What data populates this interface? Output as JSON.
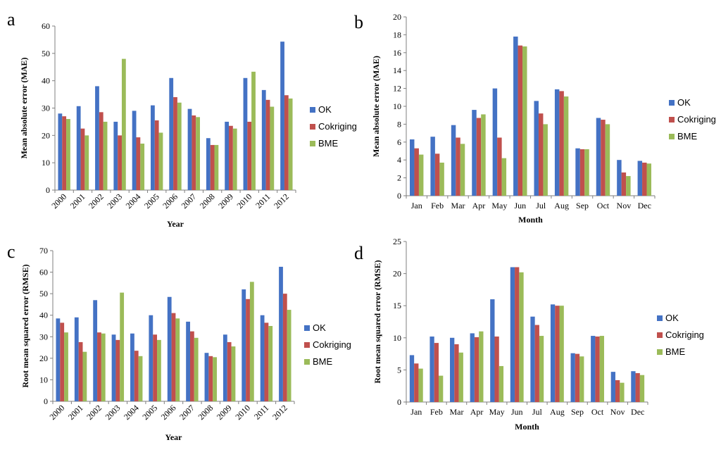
{
  "colors": {
    "OK": "#4472C4",
    "Cokriging": "#C0504D",
    "BME": "#9BBB59"
  },
  "chart_data": [
    {
      "id": "a",
      "letter": "a",
      "type": "bar",
      "xlabel": "Year",
      "ylabel": "Mean absolute error (MAE)",
      "ylim": [
        0,
        60
      ],
      "ytick_step": 10,
      "categories": [
        "2000",
        "2001",
        "2002",
        "2003",
        "2004",
        "2005",
        "2006",
        "2007",
        "2008",
        "2009",
        "2010",
        "2011",
        "2012"
      ],
      "series": [
        {
          "name": "OK",
          "values": [
            28,
            30.7,
            38,
            25,
            29,
            31,
            41,
            29.7,
            19,
            25,
            41,
            36.6,
            54.3
          ]
        },
        {
          "name": "Cokriging",
          "values": [
            27,
            22.5,
            28.5,
            20,
            19.3,
            25.5,
            34,
            27.3,
            16.5,
            23.5,
            25,
            33,
            34.7
          ]
        },
        {
          "name": "BME",
          "values": [
            26,
            20,
            25,
            48,
            17,
            21,
            32,
            26.7,
            16.5,
            22.5,
            43.3,
            30.5,
            33.5
          ]
        }
      ],
      "legend": [
        "OK",
        "Cokriging",
        "BME"
      ]
    },
    {
      "id": "b",
      "letter": "b",
      "type": "bar",
      "xlabel": "Month",
      "ylabel": "Mean absolute error (MAE)",
      "ylim": [
        0,
        20
      ],
      "ytick_step": 2,
      "categories": [
        "Jan",
        "Feb",
        "Mar",
        "Apr",
        "May",
        "Jun",
        "Jul",
        "Aug",
        "Sep",
        "Oct",
        "Nov",
        "Dec"
      ],
      "series": [
        {
          "name": "OK",
          "values": [
            6.3,
            6.6,
            7.9,
            9.6,
            12,
            17.8,
            10.6,
            11.9,
            5.3,
            8.7,
            4,
            3.9
          ]
        },
        {
          "name": "Cokriging",
          "values": [
            5.3,
            4.7,
            6.5,
            8.7,
            6.5,
            16.8,
            9.2,
            11.7,
            5.2,
            8.5,
            2.6,
            3.7
          ]
        },
        {
          "name": "BME",
          "values": [
            4.6,
            3.7,
            5.8,
            9.1,
            4.2,
            16.7,
            8,
            11.1,
            5.2,
            8,
            2.2,
            3.6
          ]
        }
      ],
      "legend": [
        "OK",
        "Cokriging",
        "BME"
      ]
    },
    {
      "id": "c",
      "letter": "c",
      "type": "bar",
      "xlabel": "Year",
      "ylabel": "Root mean squared error (RMSE)",
      "ylim": [
        0,
        70
      ],
      "ytick_step": 10,
      "categories": [
        "2000",
        "2001",
        "2002",
        "2003",
        "2004",
        "2005",
        "2006",
        "2007",
        "2008",
        "2009",
        "2010",
        "2011",
        "2012"
      ],
      "series": [
        {
          "name": "OK",
          "values": [
            38.5,
            39,
            47,
            31,
            31.5,
            40,
            48.5,
            37,
            22.5,
            31,
            52,
            40,
            62.5
          ]
        },
        {
          "name": "Cokriging",
          "values": [
            36.5,
            27.5,
            32,
            28.5,
            23.5,
            31,
            41,
            32.5,
            21,
            27.5,
            47.5,
            36.5,
            50
          ]
        },
        {
          "name": "BME",
          "values": [
            32,
            23,
            31.5,
            50.5,
            21,
            28.5,
            38.5,
            29.5,
            20.5,
            25.5,
            55.5,
            35,
            42.5
          ]
        }
      ],
      "legend": [
        "OK",
        "Cokriging",
        "BME"
      ]
    },
    {
      "id": "d",
      "letter": "d",
      "type": "bar",
      "xlabel": "Month",
      "ylabel": "Root mean squared error (RMSE)",
      "ylim": [
        0,
        25
      ],
      "ytick_step": 5,
      "categories": [
        "Jan",
        "Feb",
        "Mar",
        "Apr",
        "May",
        "Jun",
        "Jul",
        "Aug",
        "Sep",
        "Oct",
        "Nov",
        "Dec"
      ],
      "series": [
        {
          "name": "OK",
          "values": [
            7.3,
            10.2,
            10,
            10.7,
            16,
            21,
            13.3,
            15.2,
            7.6,
            10.3,
            4.7,
            4.8
          ]
        },
        {
          "name": "Cokriging",
          "values": [
            6,
            9.2,
            9,
            10.1,
            10.2,
            21,
            12,
            15,
            7.5,
            10.2,
            3.4,
            4.5
          ]
        },
        {
          "name": "BME",
          "values": [
            5.2,
            4.1,
            7.7,
            11,
            5.6,
            20.2,
            10.3,
            15,
            7.1,
            10.3,
            3,
            4.2
          ]
        }
      ],
      "legend": [
        "OK",
        "Cokriging",
        "BME"
      ]
    }
  ]
}
